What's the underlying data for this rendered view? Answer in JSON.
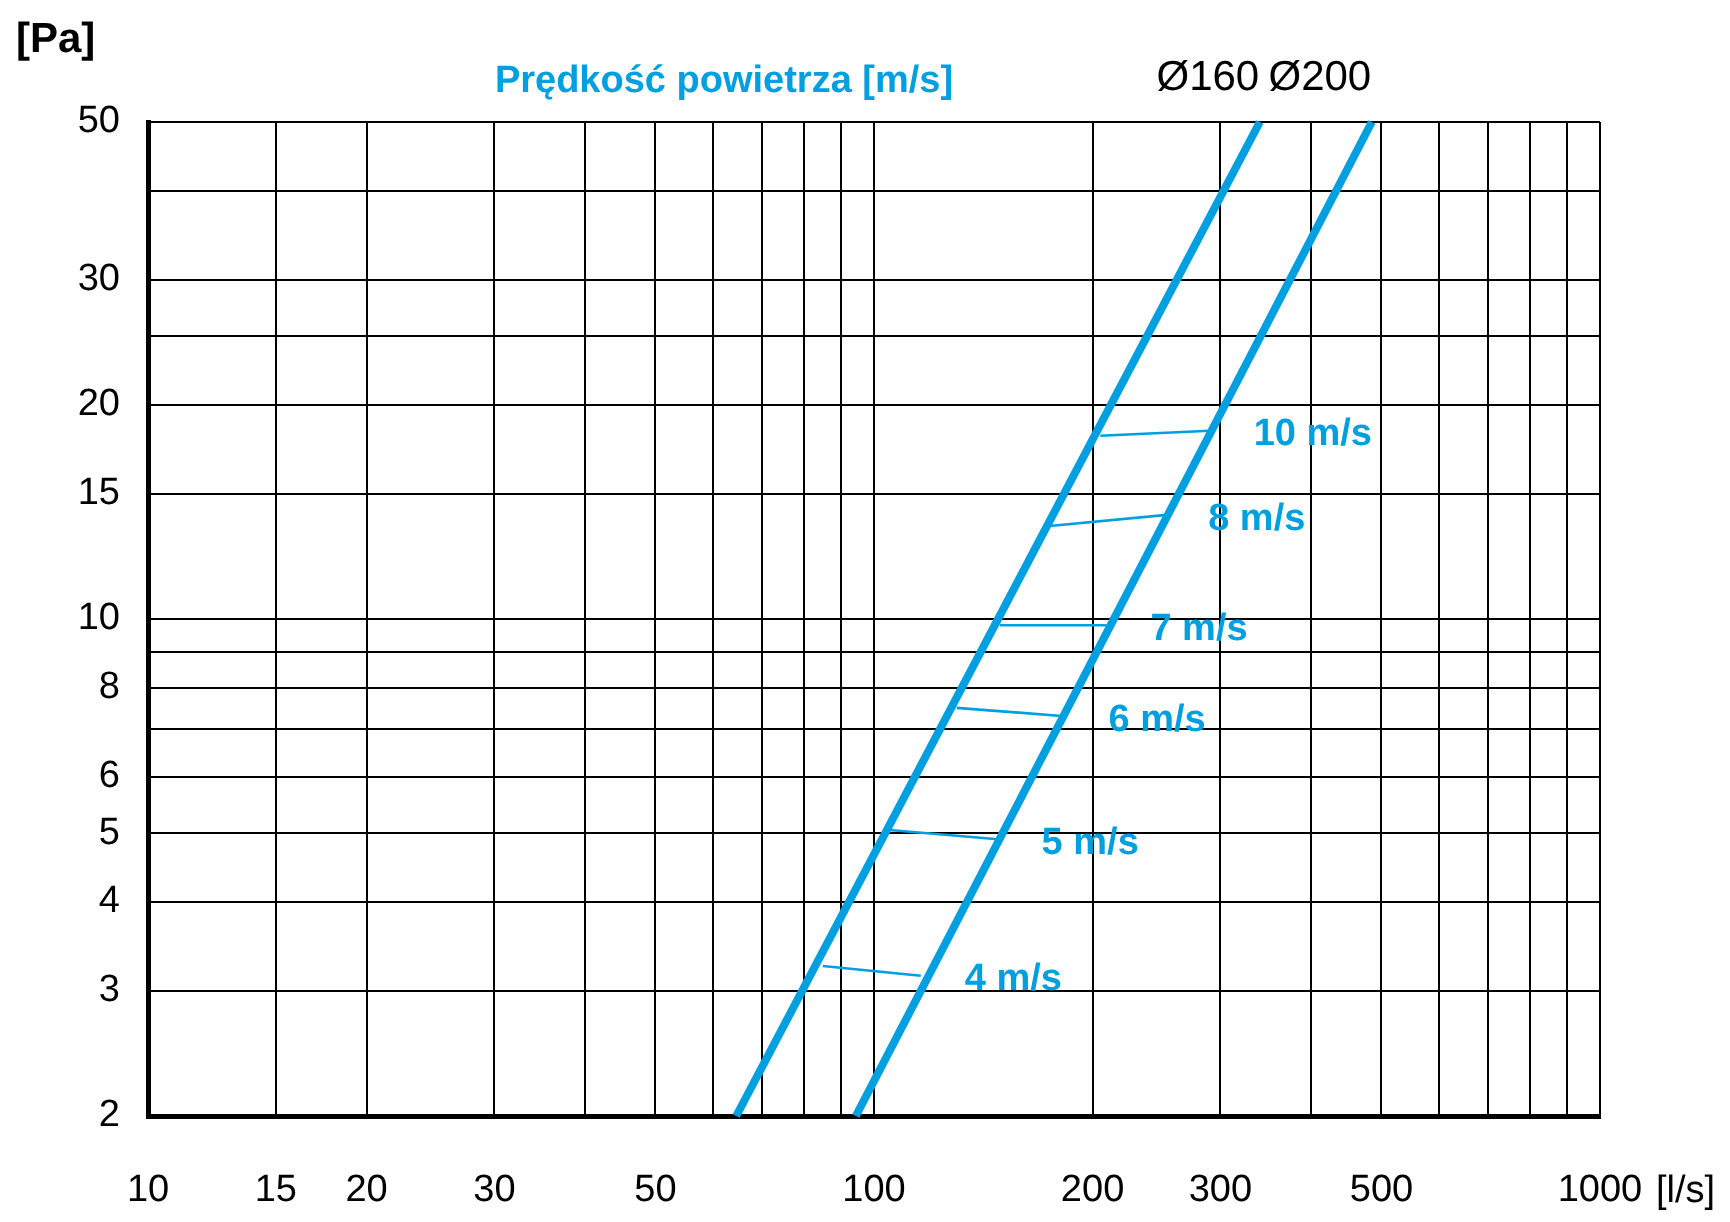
{
  "chart_data": {
    "type": "line",
    "title": "Prędkość powietrza [m/s]",
    "xlabel": "[l/s]",
    "ylabel": "[Pa]",
    "log": "xy",
    "grid": true,
    "legend": false,
    "marker": "none",
    "line_style": "solid",
    "xlim": [
      10,
      1000
    ],
    "ylim": [
      2,
      50
    ],
    "xticks": [
      10,
      15,
      20,
      30,
      {
        "value": 40,
        "label": null
      },
      50,
      {
        "value": 60,
        "label": null
      },
      {
        "value": 70,
        "label": null
      },
      {
        "value": 80,
        "label": null
      },
      {
        "value": 90,
        "label": null
      },
      100,
      200,
      300,
      {
        "value": 400,
        "label": null
      },
      500,
      {
        "value": 600,
        "label": null
      },
      {
        "value": 700,
        "label": null
      },
      {
        "value": 800,
        "label": null
      },
      {
        "value": 900,
        "label": null
      },
      1000
    ],
    "yticks": [
      2,
      3,
      4,
      5,
      6,
      {
        "value": 7,
        "label": null
      },
      8,
      {
        "value": 9,
        "label": null
      },
      10,
      15,
      20,
      {
        "value": 25,
        "label": null
      },
      30,
      {
        "value": 40,
        "label": null
      },
      50
    ],
    "series": [
      {
        "name": "Ø160",
        "color": "#009fe0",
        "x": [
          64.6,
          340
        ],
        "values": [
          2,
          50
        ]
      },
      {
        "name": "Ø200",
        "color": "#009fe0",
        "x": [
          94.4,
          485
        ],
        "values": [
          2,
          50
        ]
      },
      {
        "color": "#009fe0",
        "x": [
          205,
          290
        ],
        "values": [
          18.1,
          18.4
        ]
      },
      {
        "color": "#009fe0",
        "x": [
          173,
          251
        ],
        "values": [
          13.5,
          14.0
        ]
      },
      {
        "color": "#009fe0",
        "x": [
          149,
          209
        ],
        "values": [
          9.8,
          9.8
        ]
      },
      {
        "color": "#009fe0",
        "x": [
          130,
          183
        ],
        "values": [
          7.5,
          7.3
        ]
      },
      {
        "color": "#009fe0",
        "x": [
          105,
          148
        ],
        "values": [
          5.05,
          4.9
        ]
      },
      {
        "color": "#009fe0",
        "x": [
          85,
          116
        ],
        "values": [
          3.25,
          3.15
        ]
      }
    ],
    "annotations": [
      {
        "text": "10 m/s",
        "x": 290,
        "y": 18.4
      },
      {
        "text": "8 m/s",
        "x": 251,
        "y": 14.0
      },
      {
        "text": "7 m/s",
        "x": 209,
        "y": 9.8
      },
      {
        "text": "6 m/s",
        "x": 183,
        "y": 7.3
      },
      {
        "text": "5 m/s",
        "x": 148,
        "y": 4.9
      },
      {
        "text": "4 m/s",
        "x": 116,
        "y": 3.15
      }
    ]
  }
}
